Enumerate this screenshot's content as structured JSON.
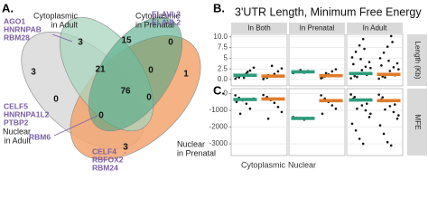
{
  "panel_labels": [
    "A.",
    "B.",
    "C."
  ],
  "venn": {
    "sets": [
      {
        "lines": [
          "Cytoplasmic",
          "in Adult"
        ]
      },
      {
        "lines": [
          "Cytoplasmic",
          "in Prenatal"
        ]
      },
      {
        "lines": [
          "Nuclear",
          "in Adult"
        ]
      },
      {
        "lines": [
          "Nuclear",
          "in Prenatal"
        ]
      }
    ],
    "counts": [
      3,
      15,
      0,
      3,
      21,
      0,
      1,
      0,
      76,
      0,
      0,
      3
    ],
    "genes": [
      {
        "lines": [
          "AGO1",
          "HNRNPAB",
          "RBM28"
        ]
      },
      {
        "lines": [
          "ELAVL3",
          "ELAVL2"
        ]
      },
      {
        "lines": [
          "CELF5",
          "HNRNPA1L2",
          "PTBP2"
        ]
      },
      {
        "lines": [
          "RBM6"
        ]
      },
      {
        "lines": [
          "CELF4",
          "RBFOX2",
          "RBM24"
        ]
      }
    ]
  },
  "chart_data": {
    "type": "strip",
    "title": "3'UTR Length, Minimum Free Energy",
    "facets": [
      "In Both",
      "In Prenatal",
      "In Adult"
    ],
    "categories": [
      "Cytoplasmic",
      "Nuclear"
    ],
    "colors": [
      "#2e9b7b",
      "#e07b2a"
    ],
    "point_color": "#111111",
    "grid": true,
    "panels": [
      {
        "label": "Length (Kb)",
        "ylim": [
          -1.5,
          10.6
        ],
        "yticks": [
          {
            "value": 10,
            "label": "10.0"
          },
          7.5,
          5,
          2.5,
          {
            "value": 0,
            "label": "0.0"
          }
        ],
        "groups": [
          [
            {
              "values": [
                0.2,
                0.5,
                0.9,
                1.4,
                2.1,
                2.8,
                0.7,
                1.1,
                0.4,
                1.8
              ],
              "median": 1.0
            },
            {
              "values": [
                0.1,
                0.4,
                0.8,
                1.3,
                1.9,
                2.6,
                0.6,
                1.0,
                3.2
              ],
              "median": 0.8
            }
          ],
          [
            {
              "values": [
                1.5,
                1.8,
                2.2,
                1.6,
                2.0
              ],
              "median": 1.8
            },
            {
              "values": [
                0.3,
                0.7,
                1.2,
                1.9,
                2.4,
                0.9,
                0.5,
                1.5
              ],
              "median": 0.9
            }
          ],
          [
            {
              "values": [
                0.3,
                0.8,
                1.5,
                2.2,
                3.0,
                4.1,
                5.2,
                6.5,
                8.0,
                9.5,
                1.1,
                2.7,
                3.6,
                0.6,
                4.8,
                7.2
              ],
              "median": 1.4
            },
            {
              "values": [
                0.2,
                0.7,
                1.3,
                2.0,
                2.9,
                3.8,
                5.0,
                6.3,
                7.7,
                10.2,
                1.0,
                2.4,
                3.3,
                0.5,
                4.4,
                8.8
              ],
              "median": 1.2
            }
          ]
        ]
      },
      {
        "label": "MFE",
        "ylim": [
          -3700,
          300
        ],
        "yticks": [
          0,
          -1000,
          -2000,
          -3000
        ],
        "groups": [
          [
            {
              "values": [
                -100,
                -250,
                -400,
                -600,
                -900,
                -300,
                -500,
                -1200
              ],
              "median": -350
            },
            {
              "values": [
                -80,
                -200,
                -380,
                -550,
                -800,
                -1100,
                -300,
                -1500
              ],
              "median": -320
            }
          ],
          [
            {
              "values": [
                -1400,
                -1450,
                -1500,
                -1550
              ],
              "median": -1480
            },
            {
              "values": [
                -100,
                -300,
                -500,
                -700,
                -900,
                -400,
                -1200
              ],
              "median": -420
            }
          ],
          [
            {
              "values": [
                -50,
                -200,
                -400,
                -700,
                -1000,
                -1400,
                -1800,
                -2200,
                -2700,
                -3000,
                -600,
                -1200,
                -300,
                -900
              ],
              "median": -380
            },
            {
              "values": [
                -60,
                -220,
                -450,
                -750,
                -1100,
                -1500,
                -1900,
                -2400,
                -2900,
                -3100,
                -650,
                -1300,
                -350,
                -950
              ],
              "median": -420
            }
          ]
        ]
      }
    ]
  }
}
